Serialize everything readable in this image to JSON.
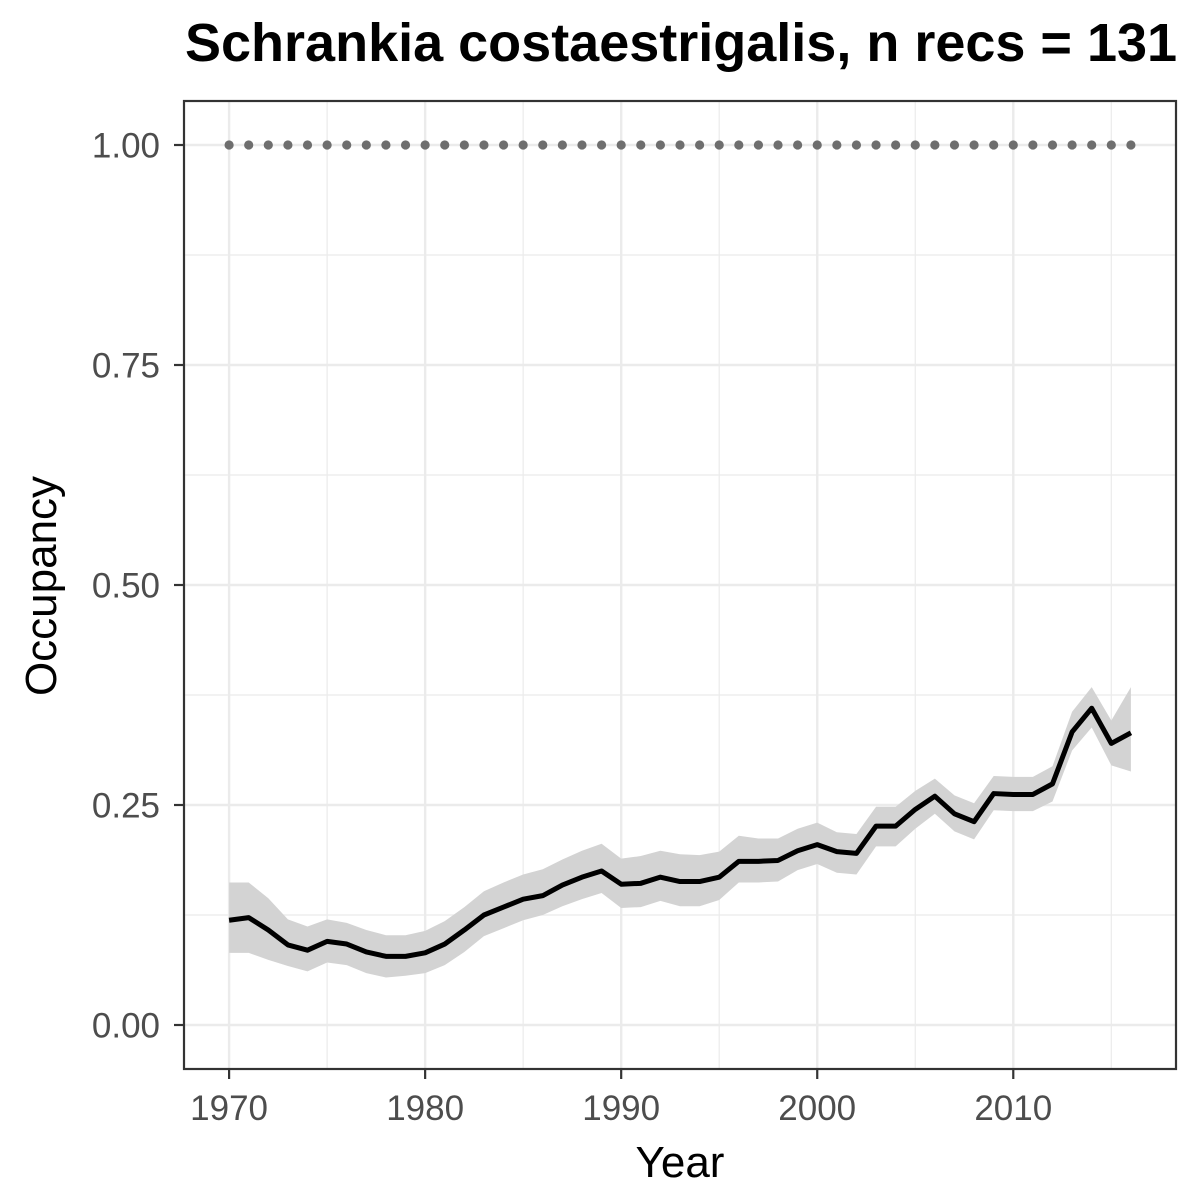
{
  "chart_data": {
    "type": "line",
    "title": "Schrankia costaestrigalis, n recs = 131",
    "xlabel": "Year",
    "ylabel": "Occupancy",
    "x": [
      1970,
      1971,
      1972,
      1973,
      1974,
      1975,
      1976,
      1977,
      1978,
      1979,
      1980,
      1981,
      1982,
      1983,
      1984,
      1985,
      1986,
      1987,
      1988,
      1989,
      1990,
      1991,
      1992,
      1993,
      1994,
      1995,
      1996,
      1997,
      1998,
      1999,
      2000,
      2001,
      2002,
      2003,
      2004,
      2005,
      2006,
      2007,
      2008,
      2009,
      2010,
      2011,
      2012,
      2013,
      2014,
      2015,
      2016
    ],
    "series": [
      {
        "type": "line",
        "values": [
          0.119,
          0.122,
          0.108,
          0.091,
          0.085,
          0.095,
          0.092,
          0.083,
          0.078,
          0.078,
          0.082,
          0.092,
          0.108,
          0.125,
          0.134,
          0.143,
          0.147,
          0.159,
          0.168,
          0.175,
          0.16,
          0.161,
          0.168,
          0.163,
          0.163,
          0.168,
          0.186,
          0.186,
          0.187,
          0.198,
          0.205,
          0.197,
          0.195,
          0.226,
          0.226,
          0.245,
          0.26,
          0.24,
          0.231,
          0.263,
          0.262,
          0.262,
          0.274,
          0.333,
          0.36,
          0.32,
          0.332
        ],
        "lower": [
          0.082,
          0.082,
          0.074,
          0.067,
          0.061,
          0.071,
          0.068,
          0.059,
          0.054,
          0.056,
          0.059,
          0.068,
          0.083,
          0.101,
          0.11,
          0.119,
          0.125,
          0.135,
          0.143,
          0.15,
          0.133,
          0.134,
          0.141,
          0.135,
          0.135,
          0.142,
          0.162,
          0.162,
          0.163,
          0.176,
          0.183,
          0.173,
          0.171,
          0.203,
          0.203,
          0.223,
          0.24,
          0.22,
          0.211,
          0.244,
          0.243,
          0.243,
          0.254,
          0.312,
          0.338,
          0.295,
          0.288
        ],
        "upper": [
          0.162,
          0.162,
          0.144,
          0.12,
          0.112,
          0.12,
          0.116,
          0.108,
          0.102,
          0.102,
          0.107,
          0.118,
          0.134,
          0.152,
          0.162,
          0.171,
          0.177,
          0.188,
          0.198,
          0.206,
          0.189,
          0.192,
          0.198,
          0.194,
          0.193,
          0.197,
          0.215,
          0.212,
          0.212,
          0.223,
          0.23,
          0.219,
          0.217,
          0.248,
          0.248,
          0.266,
          0.28,
          0.261,
          0.252,
          0.283,
          0.282,
          0.282,
          0.294,
          0.356,
          0.384,
          0.346,
          0.384
        ]
      },
      {
        "type": "scatter",
        "values": [
          1,
          1,
          1,
          1,
          1,
          1,
          1,
          1,
          1,
          1,
          1,
          1,
          1,
          1,
          1,
          1,
          1,
          1,
          1,
          1,
          1,
          1,
          1,
          1,
          1,
          1,
          1,
          1,
          1,
          1,
          1,
          1,
          1,
          1,
          1,
          1,
          1,
          1,
          1,
          1,
          1,
          1,
          1,
          1,
          1,
          1,
          1
        ]
      }
    ],
    "x_ticks": [
      1970,
      1980,
      1990,
      2000,
      2010
    ],
    "x_tick_labels": [
      "1970",
      "1980",
      "1990",
      "2000",
      "2010"
    ],
    "y_ticks": [
      0,
      0.25,
      0.5,
      0.75,
      1
    ],
    "y_tick_labels": [
      "0.00",
      "0.25",
      "0.50",
      "0.75",
      "1.00"
    ],
    "xlim": [
      1967.7,
      2018.3
    ],
    "ylim": [
      -0.05,
      1.05
    ],
    "grid": true
  },
  "colors": {
    "line": "#000000",
    "band": "#d3d3d3",
    "reference_points": "#6e6e6e",
    "grid": "#ebebeb",
    "panel_border": "#333333",
    "axis_text": "#4d4d4d"
  }
}
